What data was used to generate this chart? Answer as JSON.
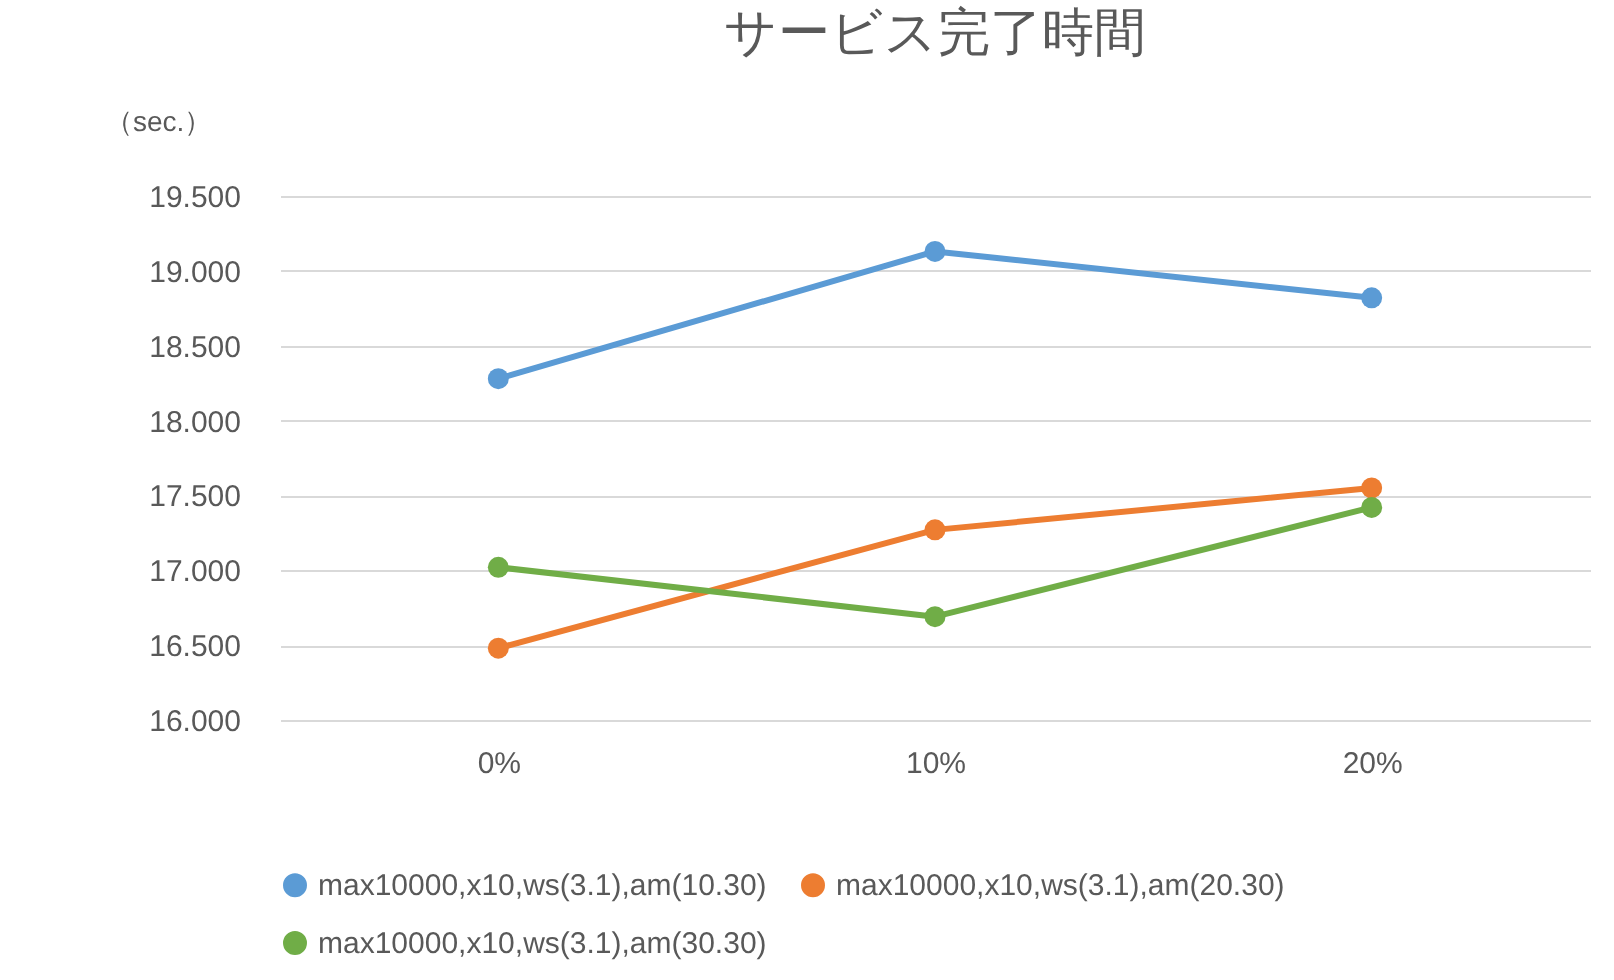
{
  "chart_data": {
    "type": "line",
    "title": "サービス完了時間",
    "ylabel": "（sec.）",
    "categories": [
      "0%",
      "10%",
      "20%"
    ],
    "series": [
      {
        "name": "max10000,x10,ws(3.1),am(10.30)",
        "color": "#5b9bd5",
        "values": [
          18.28,
          19.13,
          18.82
        ]
      },
      {
        "name": "max10000,x10,ws(3.1),am(20.30)",
        "color": "#ed7d31",
        "values": [
          16.48,
          17.27,
          17.55
        ]
      },
      {
        "name": "max10000,x10,ws(3.1),am(30.30)",
        "color": "#70ad47",
        "values": [
          17.02,
          16.69,
          17.42
        ]
      }
    ],
    "ylim": [
      16,
      19.5
    ],
    "yticks": [
      {
        "value": 16,
        "label": "16.000"
      },
      {
        "value": 16.5,
        "label": "16.500"
      },
      {
        "value": 17,
        "label": "17.000"
      },
      {
        "value": 17.5,
        "label": "17.500"
      },
      {
        "value": 18,
        "label": "18.000"
      },
      {
        "value": 18.5,
        "label": "18.500"
      },
      {
        "value": 19,
        "label": "19.000"
      },
      {
        "value": 19.5,
        "label": "19.500"
      }
    ],
    "grid": "y",
    "legend": "bottom",
    "marker": "circle",
    "line_style": "solid"
  }
}
